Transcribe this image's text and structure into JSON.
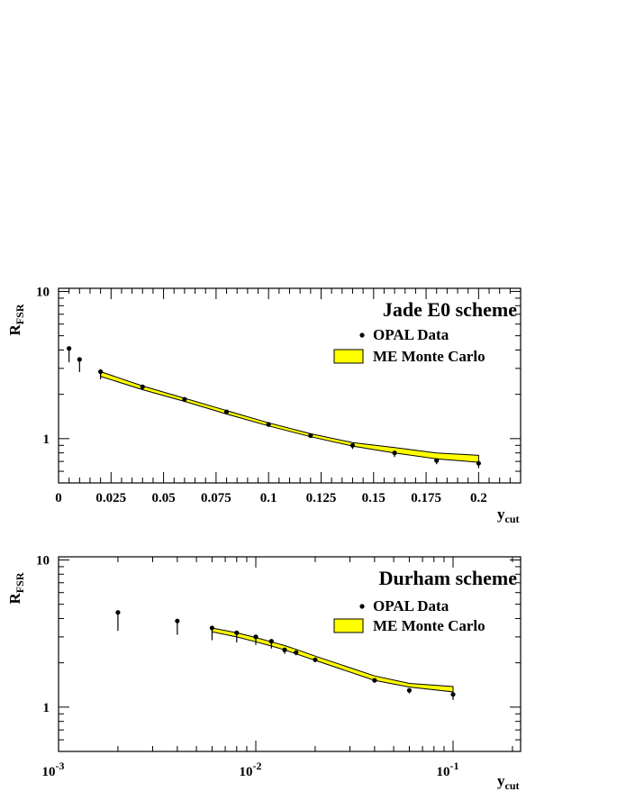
{
  "chart_data": [
    {
      "type": "line",
      "title": "Jade E0 scheme",
      "xlabel": {
        "main": "y",
        "sub": "cut"
      },
      "ylabel": {
        "main": "R",
        "sub": "FSR"
      },
      "xscale": "linear",
      "yscale": "log",
      "xlim": [
        0,
        0.22
      ],
      "ylim": [
        0.5,
        10.5
      ],
      "x_tick_labels": [
        "0",
        "0.025",
        "0.05",
        "0.075",
        "0.1",
        "0.125",
        "0.15",
        "0.175",
        "0.2"
      ],
      "x_ticks": [
        0,
        0.025,
        0.05,
        0.075,
        0.1,
        0.125,
        0.15,
        0.175,
        0.2
      ],
      "y_tick_labels": [
        "1",
        "10"
      ],
      "y_ticks": [
        1,
        10
      ],
      "legend": {
        "placement": "top-right",
        "data_label": "OPAL Data",
        "band_label": "ME Monte Carlo"
      },
      "series": [
        {
          "name": "OPAL Data",
          "kind": "points",
          "x": [
            0.005,
            0.01,
            0.02,
            0.04,
            0.06,
            0.08,
            0.1,
            0.12,
            0.14,
            0.16,
            0.18,
            0.2
          ],
          "y": [
            4.1,
            3.45,
            2.85,
            2.25,
            1.85,
            1.52,
            1.25,
            1.05,
            0.9,
            0.8,
            0.71,
            0.68
          ],
          "err_low": [
            0.8,
            0.62,
            0.32,
            0.1,
            0.08,
            0.06,
            0.05,
            0.04,
            0.05,
            0.05,
            0.04,
            0.05
          ]
        },
        {
          "name": "ME Monte Carlo",
          "kind": "band",
          "color": "#ffff00",
          "x": [
            0.02,
            0.04,
            0.06,
            0.08,
            0.1,
            0.12,
            0.14,
            0.16,
            0.18,
            0.2
          ],
          "low": [
            2.65,
            2.15,
            1.79,
            1.47,
            1.22,
            1.03,
            0.89,
            0.8,
            0.73,
            0.69
          ],
          "high": [
            2.85,
            2.28,
            1.88,
            1.55,
            1.28,
            1.08,
            0.94,
            0.87,
            0.8,
            0.77
          ]
        }
      ]
    },
    {
      "type": "line",
      "title": "Durham scheme",
      "xlabel": {
        "main": "y",
        "sub": "cut"
      },
      "ylabel": {
        "main": "R",
        "sub": "FSR"
      },
      "xscale": "log",
      "yscale": "log",
      "xlim": [
        0.001,
        0.22
      ],
      "ylim": [
        0.5,
        10.5
      ],
      "x_tick_labels": [
        {
          "base": "10",
          "exp": "-3"
        },
        {
          "base": "10",
          "exp": "-2"
        },
        {
          "base": "10",
          "exp": "-1"
        }
      ],
      "x_ticks": [
        0.001,
        0.01,
        0.1
      ],
      "y_tick_labels": [
        "1",
        "10"
      ],
      "y_ticks": [
        1,
        10
      ],
      "legend": {
        "placement": "top-right",
        "data_label": "OPAL Data",
        "band_label": "ME Monte Carlo"
      },
      "series": [
        {
          "name": "OPAL Data",
          "kind": "points",
          "x": [
            0.002,
            0.004,
            0.006,
            0.008,
            0.01,
            0.012,
            0.014,
            0.016,
            0.02,
            0.04,
            0.06,
            0.1
          ],
          "y": [
            4.4,
            3.85,
            3.45,
            3.2,
            3.0,
            2.8,
            2.45,
            2.35,
            2.1,
            1.52,
            1.3,
            1.22
          ],
          "err_low": [
            1.1,
            0.75,
            0.6,
            0.45,
            0.35,
            0.3,
            0.15,
            0.1,
            0.08,
            0.05,
            0.06,
            0.1
          ]
        },
        {
          "name": "ME Monte Carlo",
          "kind": "band",
          "color": "#ffff00",
          "x": [
            0.006,
            0.008,
            0.01,
            0.012,
            0.014,
            0.016,
            0.02,
            0.04,
            0.06,
            0.1
          ],
          "low": [
            3.25,
            3.0,
            2.78,
            2.6,
            2.45,
            2.3,
            2.08,
            1.52,
            1.37,
            1.27
          ],
          "high": [
            3.45,
            3.2,
            2.97,
            2.78,
            2.62,
            2.47,
            2.22,
            1.63,
            1.45,
            1.38
          ]
        }
      ]
    }
  ]
}
